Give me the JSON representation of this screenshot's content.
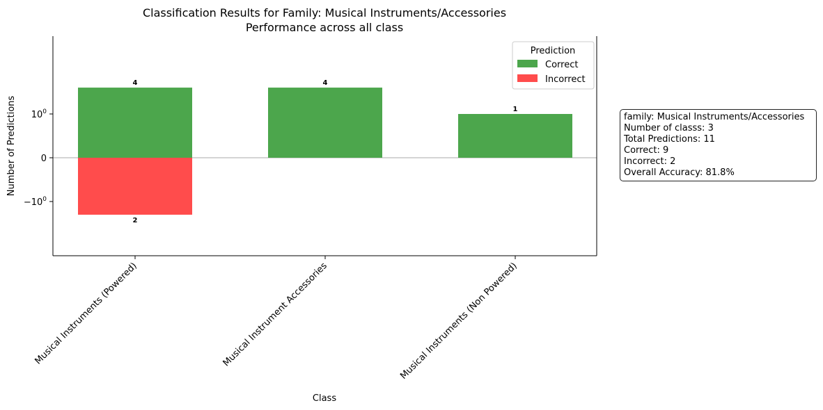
{
  "chart_data": {
    "type": "bar",
    "title": "Classification Results for Family: Musical Instruments/Accessories",
    "subtitle": "Performance across all class",
    "xlabel": "Class",
    "ylabel": "Number of Predictions",
    "yscale": "symlog",
    "categories": [
      "Musical Instruments (Powered)",
      "Musical Instrument Accessories",
      "Musical Instruments (Non Powered)"
    ],
    "series": [
      {
        "name": "Correct",
        "values": [
          4,
          4,
          1
        ],
        "color": "#4ca64c",
        "direction": "positive"
      },
      {
        "name": "Incorrect",
        "values": [
          2,
          0,
          0
        ],
        "color": "#ff4c4c",
        "direction": "negative"
      }
    ],
    "data_labels": [
      {
        "category_index": 0,
        "text": "4",
        "series": "Correct"
      },
      {
        "category_index": 1,
        "text": "4",
        "series": "Correct"
      },
      {
        "category_index": 2,
        "text": "1",
        "series": "Correct"
      },
      {
        "category_index": 0,
        "text": "2",
        "series": "Incorrect"
      }
    ],
    "yticks": [
      {
        "value": 1,
        "label_base": "10",
        "label_exp": "0",
        "sign": ""
      },
      {
        "value": 0,
        "label_base": "0",
        "label_exp": "",
        "sign": ""
      },
      {
        "value": -1,
        "label_base": "10",
        "label_exp": "0",
        "sign": "−"
      }
    ],
    "legend": {
      "title": "Prediction",
      "placement": "top-right"
    },
    "grid": false
  },
  "info_box": {
    "lines": [
      "family: Musical Instruments/Accessories",
      "Number of classs: 3",
      "Total Predictions: 11",
      "Correct: 9",
      "Incorrect: 2",
      "Overall Accuracy: 81.8%"
    ]
  }
}
